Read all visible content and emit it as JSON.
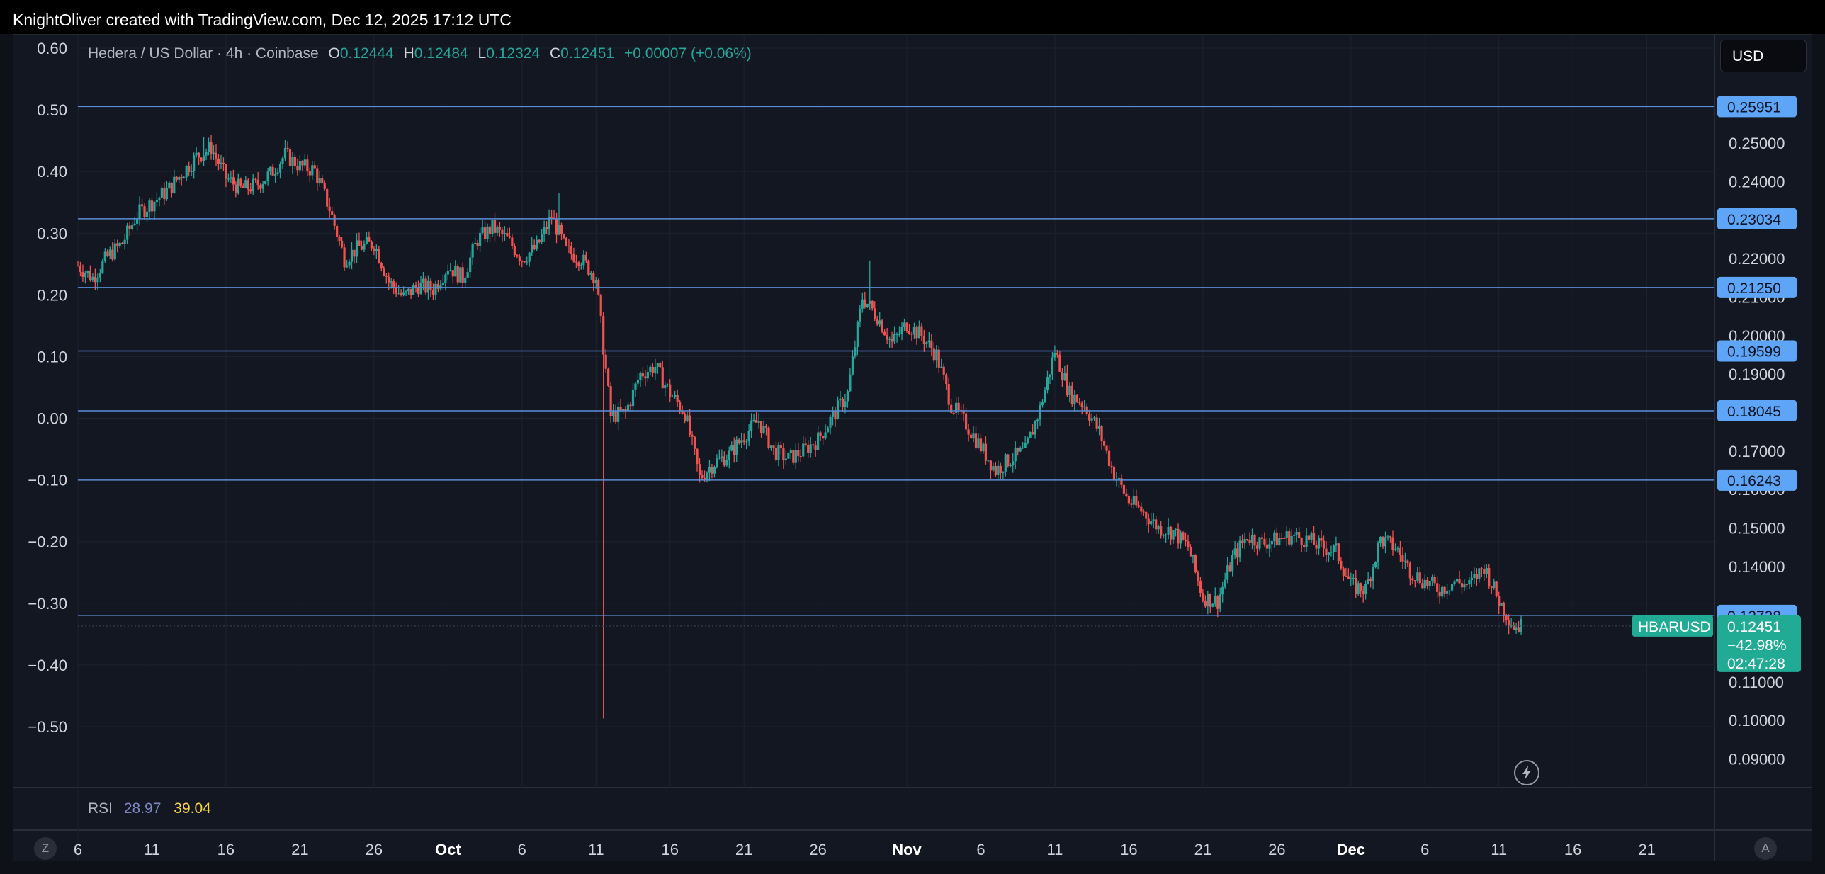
{
  "header": {
    "attribution": "KnightOliver created with TradingView.com, Dec 12, 2025 17:12 UTC"
  },
  "legend": {
    "title": "Hedera / US Dollar · 4h · Coinbase",
    "open_label": "O",
    "open": "0.12444",
    "high_label": "H",
    "high": "0.12484",
    "low_label": "L",
    "low": "0.12324",
    "close_label": "C",
    "close": "0.12451",
    "change": "+0.00007 (+0.06%)"
  },
  "currency": "USD",
  "rsi": {
    "label": "RSI",
    "value1": "28.97",
    "value2": "39.04"
  },
  "buttons": {
    "left_circle": "Z",
    "right_circle": "A"
  },
  "colors": {
    "up": "#26a69a",
    "down": "#ef5350",
    "level_line": "#5b8dd9",
    "level_tag": "#5ea5f7",
    "price_tag": "#22ab94"
  },
  "chart_data": {
    "type": "candlestick",
    "symbol": "HBARUSD",
    "timeframe": "4h",
    "right_axis": {
      "ticks": [
        "0.25000",
        "0.24000",
        "0.22000",
        "0.21000",
        "0.20000",
        "0.19000",
        "0.17000",
        "0.16000",
        "0.15000",
        "0.14000",
        "0.11000",
        "0.10000",
        "0.09000"
      ],
      "range": [
        0.0875,
        0.271
      ]
    },
    "left_axis": {
      "ticks": [
        "0.60",
        "0.50",
        "0.40",
        "0.30",
        "0.20",
        "0.10",
        "0.00",
        "−0.10",
        "−0.20",
        "−0.30",
        "−0.40",
        "−0.50"
      ],
      "range": [
        -0.595,
        0.625
      ]
    },
    "x_axis": {
      "start": "2025-09-06",
      "end": "2025-12-27",
      "ticks": [
        {
          "label": "6",
          "date": "2025-09-06"
        },
        {
          "label": "11",
          "date": "2025-09-11"
        },
        {
          "label": "16",
          "date": "2025-09-16"
        },
        {
          "label": "21",
          "date": "2025-09-21"
        },
        {
          "label": "26",
          "date": "2025-09-26"
        },
        {
          "label": "Oct",
          "date": "2025-10-01",
          "month": true
        },
        {
          "label": "6",
          "date": "2025-10-06"
        },
        {
          "label": "11",
          "date": "2025-10-11"
        },
        {
          "label": "16",
          "date": "2025-10-16"
        },
        {
          "label": "21",
          "date": "2025-10-21"
        },
        {
          "label": "26",
          "date": "2025-10-26"
        },
        {
          "label": "Nov",
          "date": "2025-11-01",
          "month": true
        },
        {
          "label": "6",
          "date": "2025-11-06"
        },
        {
          "label": "11",
          "date": "2025-11-11"
        },
        {
          "label": "16",
          "date": "2025-11-16"
        },
        {
          "label": "21",
          "date": "2025-11-21"
        },
        {
          "label": "26",
          "date": "2025-11-26"
        },
        {
          "label": "Dec",
          "date": "2025-12-01",
          "month": true
        },
        {
          "label": "6",
          "date": "2025-12-06"
        },
        {
          "label": "11",
          "date": "2025-12-11"
        },
        {
          "label": "16",
          "date": "2025-12-16"
        },
        {
          "label": "21",
          "date": "2025-12-21"
        }
      ]
    },
    "levels": [
      "0.25951",
      "0.23034",
      "0.21250",
      "0.19599",
      "0.18045",
      "0.16243",
      "0.12728"
    ],
    "current": {
      "symbol": "HBARUSD",
      "price": "0.12451",
      "change_pct": "−42.98%",
      "countdown": "02:47:28"
    },
    "close_path": [
      {
        "date": "2025-09-06",
        "close": 0.2182
      },
      {
        "date": "2025-09-07",
        "close": 0.215
      },
      {
        "date": "2025-09-08",
        "close": 0.2205
      },
      {
        "date": "2025-09-09",
        "close": 0.224
      },
      {
        "date": "2025-09-10",
        "close": 0.2315
      },
      {
        "date": "2025-09-11",
        "close": 0.2345
      },
      {
        "date": "2025-09-12",
        "close": 0.2375
      },
      {
        "date": "2025-09-13",
        "close": 0.242
      },
      {
        "date": "2025-09-14",
        "close": 0.2465
      },
      {
        "date": "2025-09-15",
        "close": 0.2488
      },
      {
        "date": "2025-09-16",
        "close": 0.241
      },
      {
        "date": "2025-09-17",
        "close": 0.238
      },
      {
        "date": "2025-09-18",
        "close": 0.239
      },
      {
        "date": "2025-09-19",
        "close": 0.242
      },
      {
        "date": "2025-09-20",
        "close": 0.247
      },
      {
        "date": "2025-09-21",
        "close": 0.244
      },
      {
        "date": "2025-09-22",
        "close": 0.243
      },
      {
        "date": "2025-09-23",
        "close": 0.233
      },
      {
        "date": "2025-09-24",
        "close": 0.22
      },
      {
        "date": "2025-09-25",
        "close": 0.223
      },
      {
        "date": "2025-09-26",
        "close": 0.224
      },
      {
        "date": "2025-09-27",
        "close": 0.214
      },
      {
        "date": "2025-09-28",
        "close": 0.21
      },
      {
        "date": "2025-09-29",
        "close": 0.213
      },
      {
        "date": "2025-09-30",
        "close": 0.212
      },
      {
        "date": "2025-10-01",
        "close": 0.218
      },
      {
        "date": "2025-10-02",
        "close": 0.215
      },
      {
        "date": "2025-10-03",
        "close": 0.225
      },
      {
        "date": "2025-10-04",
        "close": 0.228
      },
      {
        "date": "2025-10-05",
        "close": 0.225
      },
      {
        "date": "2025-10-06",
        "close": 0.22
      },
      {
        "date": "2025-10-07",
        "close": 0.223
      },
      {
        "date": "2025-10-08",
        "close": 0.231
      },
      {
        "date": "2025-10-09",
        "close": 0.222
      },
      {
        "date": "2025-10-10",
        "close": 0.22
      },
      {
        "date": "2025-10-11",
        "close": 0.215
      },
      {
        "date": "2025-10-12",
        "close": 0.179
      },
      {
        "date": "2025-10-13",
        "close": 0.18
      },
      {
        "date": "2025-10-14",
        "close": 0.19
      },
      {
        "date": "2025-10-15",
        "close": 0.192
      },
      {
        "date": "2025-10-16",
        "close": 0.185
      },
      {
        "date": "2025-10-17",
        "close": 0.18
      },
      {
        "date": "2025-10-18",
        "close": 0.163
      },
      {
        "date": "2025-10-19",
        "close": 0.167
      },
      {
        "date": "2025-10-20",
        "close": 0.169
      },
      {
        "date": "2025-10-21",
        "close": 0.174
      },
      {
        "date": "2025-10-22",
        "close": 0.178
      },
      {
        "date": "2025-10-23",
        "close": 0.17
      },
      {
        "date": "2025-10-24",
        "close": 0.168
      },
      {
        "date": "2025-10-25",
        "close": 0.17
      },
      {
        "date": "2025-10-26",
        "close": 0.173
      },
      {
        "date": "2025-10-27",
        "close": 0.179
      },
      {
        "date": "2025-10-28",
        "close": 0.185
      },
      {
        "date": "2025-10-29",
        "close": 0.21
      },
      {
        "date": "2025-10-30",
        "close": 0.205
      },
      {
        "date": "2025-10-31",
        "close": 0.198
      },
      {
        "date": "2025-11-01",
        "close": 0.203
      },
      {
        "date": "2025-11-02",
        "close": 0.2
      },
      {
        "date": "2025-11-03",
        "close": 0.195
      },
      {
        "date": "2025-11-04",
        "close": 0.182
      },
      {
        "date": "2025-11-05",
        "close": 0.177
      },
      {
        "date": "2025-11-06",
        "close": 0.171
      },
      {
        "date": "2025-11-07",
        "close": 0.165
      },
      {
        "date": "2025-11-08",
        "close": 0.168
      },
      {
        "date": "2025-11-09",
        "close": 0.17
      },
      {
        "date": "2025-11-10",
        "close": 0.181
      },
      {
        "date": "2025-11-11",
        "close": 0.196
      },
      {
        "date": "2025-11-12",
        "close": 0.185
      },
      {
        "date": "2025-11-13",
        "close": 0.182
      },
      {
        "date": "2025-11-14",
        "close": 0.175
      },
      {
        "date": "2025-11-15",
        "close": 0.164
      },
      {
        "date": "2025-11-16",
        "close": 0.157
      },
      {
        "date": "2025-11-17",
        "close": 0.154
      },
      {
        "date": "2025-11-18",
        "close": 0.15
      },
      {
        "date": "2025-11-19",
        "close": 0.149
      },
      {
        "date": "2025-11-20",
        "close": 0.145
      },
      {
        "date": "2025-11-21",
        "close": 0.132
      },
      {
        "date": "2025-11-22",
        "close": 0.131
      },
      {
        "date": "2025-11-23",
        "close": 0.142
      },
      {
        "date": "2025-11-24",
        "close": 0.148
      },
      {
        "date": "2025-11-25",
        "close": 0.146
      },
      {
        "date": "2025-11-26",
        "close": 0.147
      },
      {
        "date": "2025-11-27",
        "close": 0.148
      },
      {
        "date": "2025-11-28",
        "close": 0.147
      },
      {
        "date": "2025-11-29",
        "close": 0.145
      },
      {
        "date": "2025-11-30",
        "close": 0.144
      },
      {
        "date": "2025-12-01",
        "close": 0.135
      },
      {
        "date": "2025-12-02",
        "close": 0.134
      },
      {
        "date": "2025-12-03",
        "close": 0.147
      },
      {
        "date": "2025-12-04",
        "close": 0.145
      },
      {
        "date": "2025-12-05",
        "close": 0.139
      },
      {
        "date": "2025-12-06",
        "close": 0.136
      },
      {
        "date": "2025-12-07",
        "close": 0.134
      },
      {
        "date": "2025-12-08",
        "close": 0.136
      },
      {
        "date": "2025-12-09",
        "close": 0.135
      },
      {
        "date": "2025-12-10",
        "close": 0.14
      },
      {
        "date": "2025-12-11",
        "close": 0.131
      },
      {
        "date": "2025-12-12",
        "close": 0.1245
      }
    ],
    "notable_wicks": [
      {
        "date": "2025-09-14",
        "high": 0.2515
      },
      {
        "date": "2025-10-08",
        "high": 0.237
      },
      {
        "date": "2025-10-11",
        "low": 0.1005
      },
      {
        "date": "2025-10-29",
        "high": 0.2195
      },
      {
        "date": "2025-11-21",
        "low": 0.128
      }
    ]
  }
}
